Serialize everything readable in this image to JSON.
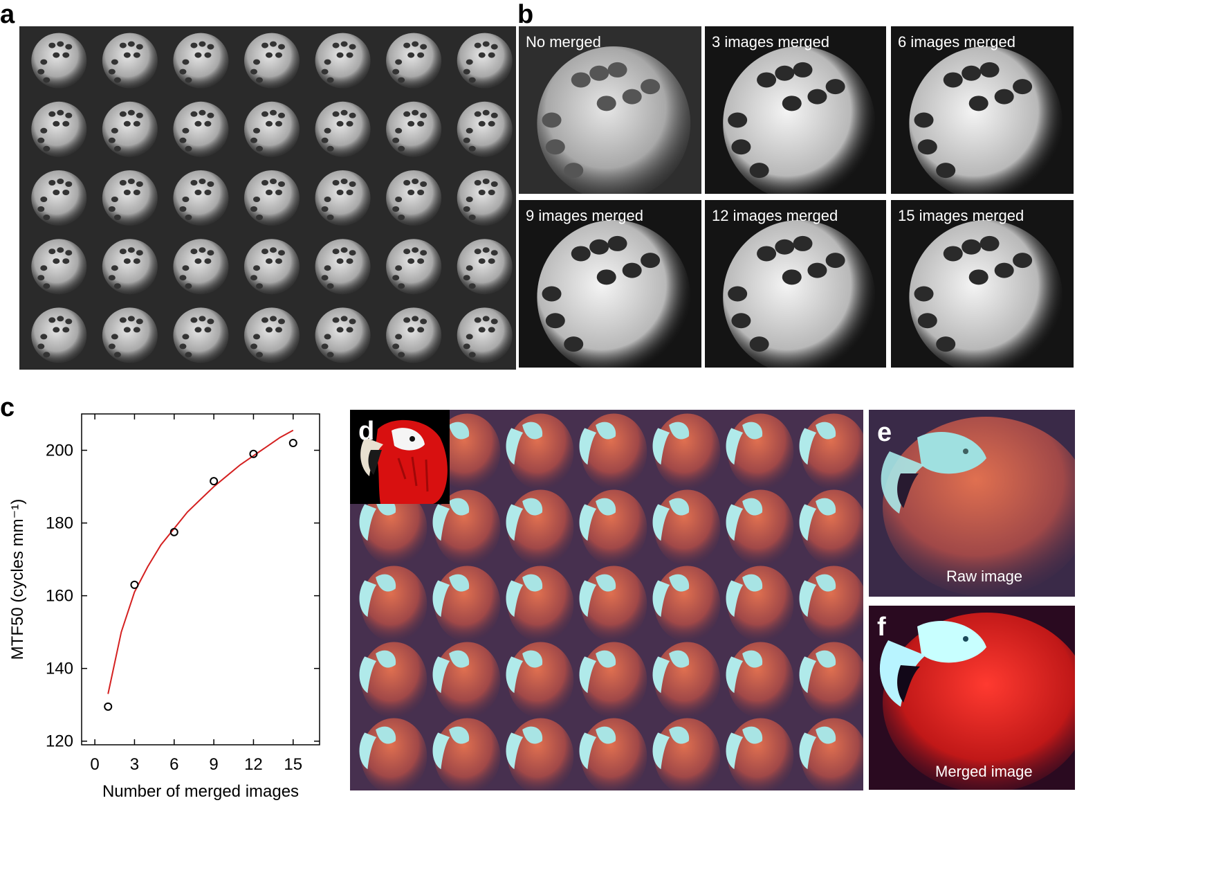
{
  "panels": {
    "a": "a",
    "b": "b",
    "c": "c",
    "d": "d",
    "e": "e",
    "f": "f"
  },
  "panel_b_captions": [
    "No merged",
    "3 images merged",
    "6 images merged",
    "9 images merged",
    "12 images merged",
    "15 images merged"
  ],
  "panel_e_caption": "Raw image",
  "panel_f_caption": "Merged image",
  "colors": {
    "fit_line": "#d42020",
    "dice_bg": "#1e1e1e",
    "parrot_red": "#d81010",
    "parrot_bg": "#4a3050"
  },
  "chart_data": {
    "type": "scatter",
    "xlabel": "Number of merged images",
    "ylabel": "MTF50 (cycles mm⁻¹)",
    "x_ticks": [
      0,
      3,
      6,
      9,
      12,
      15
    ],
    "y_ticks": [
      120,
      140,
      160,
      180,
      200
    ],
    "xlim": [
      -1,
      17
    ],
    "ylim": [
      119,
      210
    ],
    "points": [
      {
        "x": 1,
        "y": 129.5
      },
      {
        "x": 3,
        "y": 163
      },
      {
        "x": 6,
        "y": 177.5
      },
      {
        "x": 9,
        "y": 191.5
      },
      {
        "x": 12,
        "y": 199
      },
      {
        "x": 15,
        "y": 202
      }
    ],
    "fit_curve": [
      {
        "x": 1,
        "y": 133
      },
      {
        "x": 2,
        "y": 150
      },
      {
        "x": 3,
        "y": 161
      },
      {
        "x": 4,
        "y": 168
      },
      {
        "x": 5,
        "y": 174
      },
      {
        "x": 6,
        "y": 178.5
      },
      {
        "x": 7,
        "y": 183
      },
      {
        "x": 8,
        "y": 186.5
      },
      {
        "x": 9,
        "y": 190
      },
      {
        "x": 10,
        "y": 193
      },
      {
        "x": 11,
        "y": 196
      },
      {
        "x": 12,
        "y": 198.5
      },
      {
        "x": 13,
        "y": 201
      },
      {
        "x": 14,
        "y": 203.5
      },
      {
        "x": 15,
        "y": 205.5
      }
    ],
    "grid": false
  }
}
